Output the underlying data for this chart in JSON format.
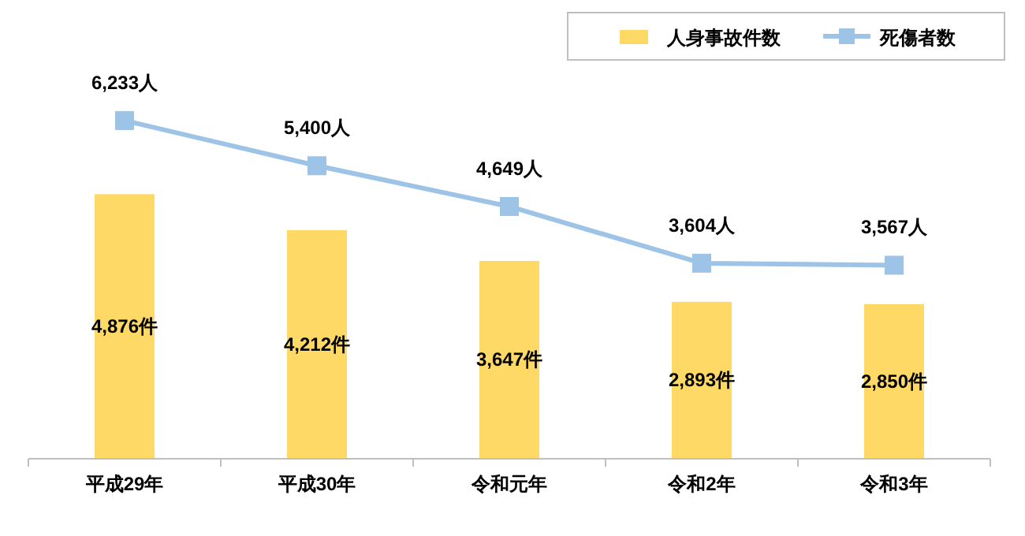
{
  "chart_data": {
    "type": "bar",
    "categories": [
      "平成29年",
      "平成30年",
      "令和元年",
      "令和2年",
      "令和3年"
    ],
    "series": [
      {
        "name": "人身事故件数",
        "color": "#ffd966",
        "values": [
          4876,
          4212,
          3647,
          2893,
          2850
        ],
        "value_labels": [
          "4,876件",
          "4,212件",
          "3,647件",
          "2,893件",
          "2,850件"
        ]
      },
      {
        "name": "死傷者数",
        "type": "line",
        "color": "#9dc3e6",
        "marker": "square",
        "values": [
          6233,
          5400,
          4649,
          3604,
          3567
        ],
        "value_labels": [
          "6,233人",
          "5,400人",
          "4,649人",
          "3,604人",
          "3,567人"
        ]
      }
    ],
    "legend": "top right"
  }
}
